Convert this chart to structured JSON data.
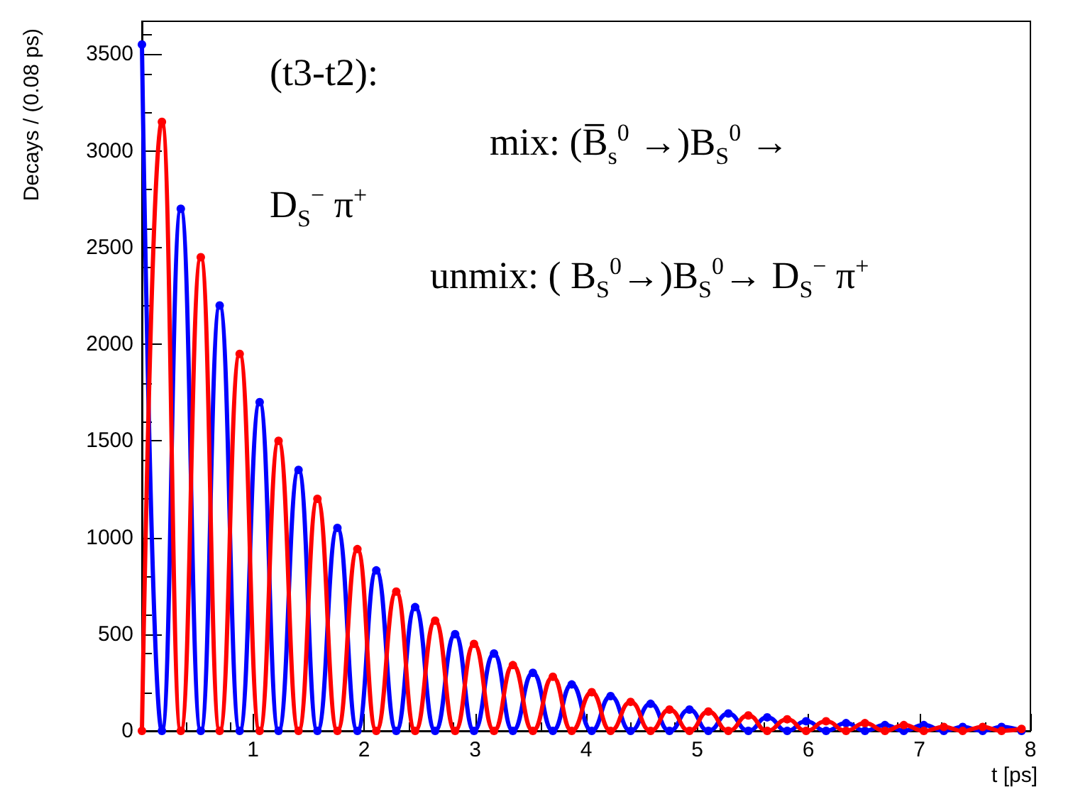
{
  "chart_data": {
    "type": "line",
    "xlabel": "t [ps]",
    "ylabel": "Decays / (0.08 ps)",
    "annotations": [
      "(t3-t2):",
      "mix: (B̅$_{s}$$^{0}$ →)B$_{S}$$^{0}$ →",
      "D$_{S}$$^{−}$ π$^{+}$",
      "unmix: ( B$_{S}$$^{0}$→)B$_{S}$$^{0}$→ D$_{S}$$^{−}$ π$^{+}$"
    ],
    "x": [
      0,
      0.18,
      0.35,
      0.53,
      0.7,
      0.88,
      1.06,
      1.23,
      1.41,
      1.58,
      1.76,
      1.94,
      2.11,
      2.29,
      2.46,
      2.64,
      2.82,
      2.99,
      3.17,
      3.34,
      3.52,
      3.7,
      3.87,
      4.05,
      4.22,
      4.4,
      4.58,
      4.75,
      4.93,
      5.1,
      5.28,
      5.46,
      5.63,
      5.81,
      5.98,
      6.16,
      6.34,
      6.51,
      6.69,
      6.86,
      7.04,
      7.22,
      7.39,
      7.57,
      7.74,
      7.92
    ],
    "series": [
      {
        "color": "#0000ff",
        "values": [
          3550,
          0,
          2700,
          0,
          2200,
          0,
          1700,
          0,
          1350,
          0,
          1050,
          0,
          830,
          0,
          640,
          0,
          500,
          0,
          400,
          0,
          300,
          0,
          240,
          0,
          180,
          0,
          140,
          0,
          110,
          0,
          90,
          0,
          70,
          0,
          50,
          0,
          40,
          0,
          30,
          0,
          30,
          0,
          20,
          0,
          20,
          0
        ]
      },
      {
        "color": "#ff0000",
        "values": [
          0,
          3150,
          0,
          2450,
          0,
          1950,
          0,
          1500,
          0,
          1200,
          0,
          940,
          0,
          720,
          0,
          570,
          0,
          450,
          0,
          340,
          0,
          280,
          0,
          200,
          0,
          150,
          0,
          110,
          0,
          100,
          0,
          80,
          0,
          60,
          0,
          50,
          0,
          40,
          0,
          30,
          0,
          20,
          0,
          20,
          0,
          10
        ]
      }
    ],
    "xlim": [
      0,
      8
    ],
    "xticks": [
      1,
      2,
      3,
      4,
      5,
      6,
      7,
      8
    ],
    "ylim": [
      0,
      3670
    ],
    "yticks": [
      0,
      500,
      1000,
      1500,
      2000,
      2500,
      3000,
      3500
    ],
    "grid": false,
    "marker": "circle",
    "line_style": "solid"
  }
}
